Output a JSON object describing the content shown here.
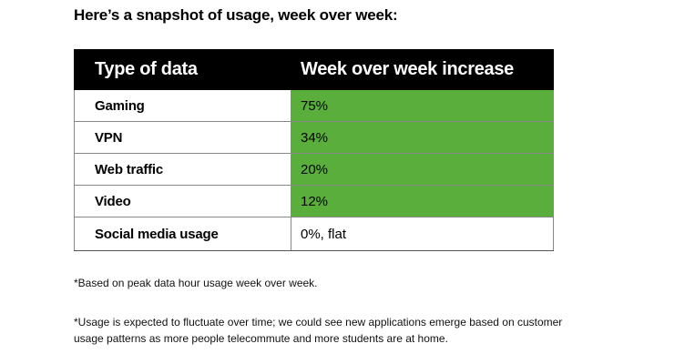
{
  "heading": "Here’s a snapshot of usage, week over week:",
  "table": {
    "headers": [
      "Type of data",
      "Week over week increase"
    ],
    "rows": [
      {
        "type": "Gaming",
        "value": "75%",
        "highlighted": true
      },
      {
        "type": "VPN",
        "value": "34%",
        "highlighted": true
      },
      {
        "type": "Web traffic",
        "value": "20%",
        "highlighted": true
      },
      {
        "type": "Video",
        "value": "12%",
        "highlighted": true
      },
      {
        "type": "Social media usage",
        "value": "0%, flat",
        "highlighted": false
      }
    ],
    "highlight_color": "#5aaf3c",
    "header_color": "#000000"
  },
  "footnotes": [
    "*Based on peak data hour usage week over week.",
    "*Usage is expected to fluctuate over time; we could see new applications emerge based on customer usage patterns as more people telecommute and more students are at home."
  ]
}
